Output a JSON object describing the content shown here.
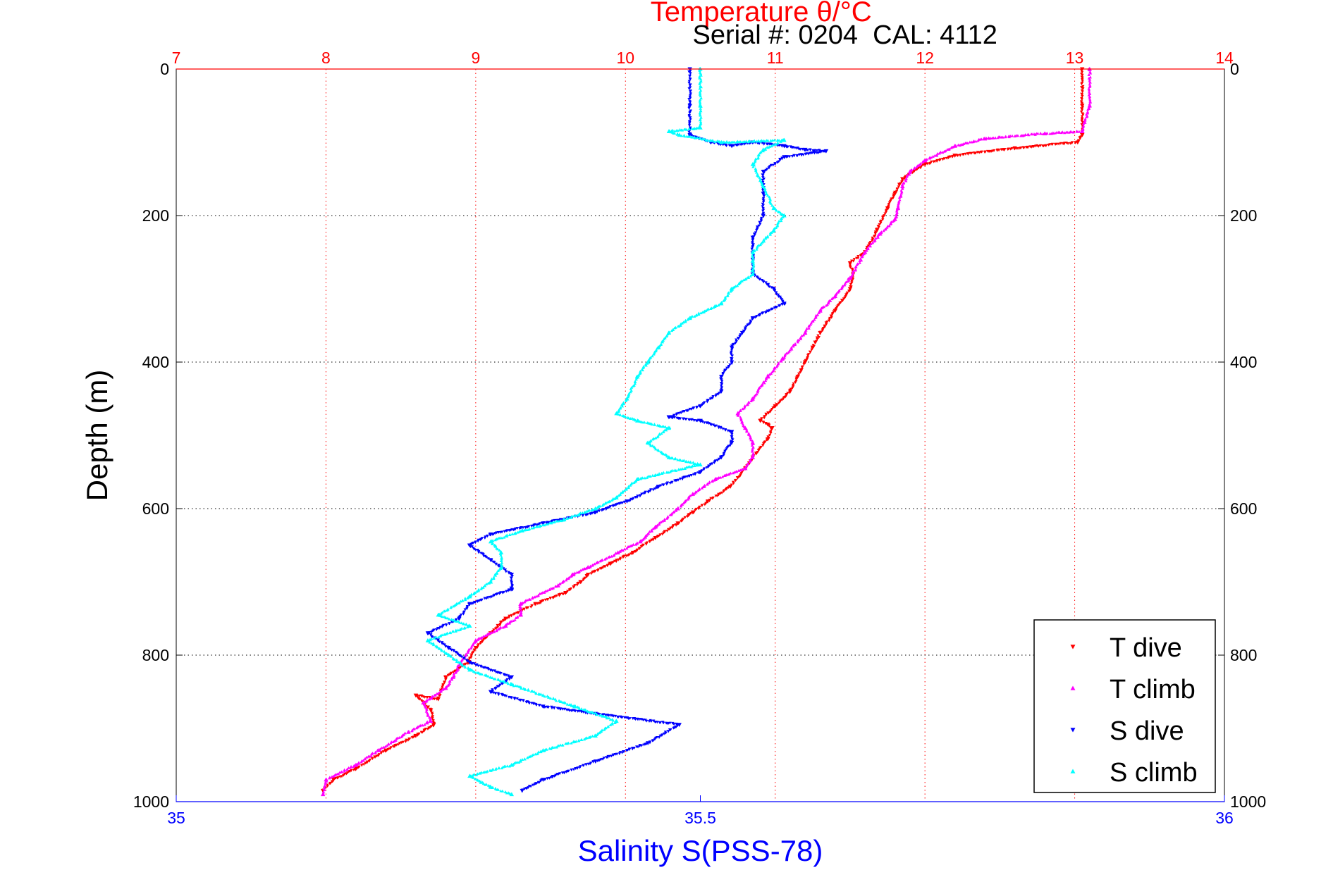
{
  "chart_data": {
    "type": "scatter",
    "title": "Temperature θ/°C",
    "subtitle": "Serial #: 0204  CAL: 4112",
    "xlabel": "Salinity S(PSS-78)",
    "ylabel": "Depth (m)",
    "x_bottom": {
      "label": "Salinity S(PSS-78)",
      "lim": [
        35,
        36
      ],
      "ticks": [
        "35",
        "35.5",
        "36"
      ],
      "color": "#0000ff"
    },
    "x_top": {
      "label": "Temperature θ/°C",
      "lim": [
        7,
        14
      ],
      "ticks": [
        "7",
        "8",
        "9",
        "10",
        "11",
        "12",
        "13",
        "14"
      ],
      "color": "#ff0000"
    },
    "y": {
      "label": "Depth (m)",
      "lim": [
        0,
        1000
      ],
      "reversed": true,
      "ticks": [
        "0",
        "200",
        "400",
        "600",
        "800",
        "1000"
      ]
    },
    "grid": true,
    "legend_position": "bottom-right",
    "legend": [
      "T dive",
      "T climb",
      "S dive",
      "S climb"
    ],
    "series": [
      {
        "name": "T dive",
        "axis": "temperature",
        "color": "#ff0000",
        "marker": "triangle-down",
        "points": [
          [
            13.05,
            0
          ],
          [
            13.05,
            50
          ],
          [
            13.05,
            90
          ],
          [
            13.02,
            100
          ],
          [
            12.6,
            108
          ],
          [
            12.2,
            118
          ],
          [
            12.0,
            130
          ],
          [
            11.85,
            150
          ],
          [
            11.8,
            170
          ],
          [
            11.75,
            190
          ],
          [
            11.68,
            220
          ],
          [
            11.6,
            250
          ],
          [
            11.5,
            265
          ],
          [
            11.52,
            280
          ],
          [
            11.5,
            300
          ],
          [
            11.4,
            330
          ],
          [
            11.3,
            360
          ],
          [
            11.25,
            380
          ],
          [
            11.2,
            400
          ],
          [
            11.15,
            420
          ],
          [
            11.1,
            440
          ],
          [
            11.0,
            460
          ],
          [
            10.9,
            480
          ],
          [
            10.95,
            485
          ],
          [
            10.98,
            490
          ],
          [
            10.95,
            505
          ],
          [
            10.85,
            530
          ],
          [
            10.8,
            545
          ],
          [
            10.7,
            570
          ],
          [
            10.55,
            590
          ],
          [
            10.45,
            605
          ],
          [
            10.35,
            620
          ],
          [
            10.2,
            640
          ],
          [
            10.05,
            660
          ],
          [
            9.9,
            675
          ],
          [
            9.75,
            690
          ],
          [
            9.7,
            700
          ],
          [
            9.6,
            715
          ],
          [
            9.4,
            730
          ],
          [
            9.2,
            750
          ],
          [
            9.1,
            770
          ],
          [
            9.0,
            790
          ],
          [
            8.95,
            810
          ],
          [
            8.8,
            830
          ],
          [
            8.75,
            860
          ],
          [
            8.6,
            855
          ],
          [
            8.7,
            875
          ],
          [
            8.72,
            895
          ],
          [
            8.6,
            910
          ],
          [
            8.4,
            930
          ],
          [
            8.2,
            955
          ],
          [
            8.05,
            970
          ],
          [
            7.98,
            985
          ]
        ]
      },
      {
        "name": "T climb",
        "axis": "temperature",
        "color": "#ff00ff",
        "marker": "triangle-up",
        "points": [
          [
            13.1,
            0
          ],
          [
            13.1,
            50
          ],
          [
            13.05,
            85
          ],
          [
            12.8,
            88
          ],
          [
            12.4,
            95
          ],
          [
            12.2,
            105
          ],
          [
            12.0,
            125
          ],
          [
            11.9,
            140
          ],
          [
            11.85,
            160
          ],
          [
            11.82,
            190
          ],
          [
            11.8,
            205
          ],
          [
            11.7,
            225
          ],
          [
            11.6,
            250
          ],
          [
            11.5,
            285
          ],
          [
            11.4,
            310
          ],
          [
            11.3,
            330
          ],
          [
            11.2,
            360
          ],
          [
            11.05,
            395
          ],
          [
            10.95,
            420
          ],
          [
            10.85,
            450
          ],
          [
            10.75,
            470
          ],
          [
            10.8,
            490
          ],
          [
            10.85,
            510
          ],
          [
            10.85,
            530
          ],
          [
            10.8,
            545
          ],
          [
            10.6,
            560
          ],
          [
            10.45,
            580
          ],
          [
            10.35,
            600
          ],
          [
            10.2,
            625
          ],
          [
            10.1,
            645
          ],
          [
            9.95,
            660
          ],
          [
            9.75,
            680
          ],
          [
            9.65,
            690
          ],
          [
            9.55,
            705
          ],
          [
            9.3,
            730
          ],
          [
            9.3,
            745
          ],
          [
            9.2,
            760
          ],
          [
            9.0,
            780
          ],
          [
            8.9,
            810
          ],
          [
            8.85,
            830
          ],
          [
            8.8,
            845
          ],
          [
            8.65,
            865
          ],
          [
            8.7,
            890
          ],
          [
            8.55,
            905
          ],
          [
            8.35,
            930
          ],
          [
            8.2,
            950
          ],
          [
            8.0,
            970
          ],
          [
            7.98,
            990
          ]
        ]
      },
      {
        "name": "S dive",
        "axis": "salinity",
        "color": "#0000ff",
        "marker": "triangle-down",
        "points": [
          [
            35.49,
            0
          ],
          [
            35.49,
            50
          ],
          [
            35.49,
            90
          ],
          [
            35.51,
            100
          ],
          [
            35.53,
            105
          ],
          [
            35.55,
            100
          ],
          [
            35.58,
            105
          ],
          [
            35.6,
            110
          ],
          [
            35.62,
            112
          ],
          [
            35.58,
            120
          ],
          [
            35.56,
            140
          ],
          [
            35.56,
            170
          ],
          [
            35.56,
            200
          ],
          [
            35.55,
            230
          ],
          [
            35.55,
            260
          ],
          [
            35.55,
            280
          ],
          [
            35.57,
            300
          ],
          [
            35.58,
            320
          ],
          [
            35.55,
            340
          ],
          [
            35.54,
            360
          ],
          [
            35.53,
            380
          ],
          [
            35.53,
            400
          ],
          [
            35.52,
            420
          ],
          [
            35.52,
            440
          ],
          [
            35.5,
            460
          ],
          [
            35.47,
            475
          ],
          [
            35.5,
            480
          ],
          [
            35.53,
            495
          ],
          [
            35.53,
            510
          ],
          [
            35.52,
            530
          ],
          [
            35.5,
            550
          ],
          [
            35.46,
            570
          ],
          [
            35.43,
            590
          ],
          [
            35.4,
            605
          ],
          [
            35.35,
            620
          ],
          [
            35.3,
            635
          ],
          [
            35.28,
            650
          ],
          [
            35.3,
            670
          ],
          [
            35.32,
            690
          ],
          [
            35.32,
            710
          ],
          [
            35.28,
            730
          ],
          [
            35.27,
            750
          ],
          [
            35.24,
            770
          ],
          [
            35.26,
            790
          ],
          [
            35.28,
            810
          ],
          [
            35.32,
            830
          ],
          [
            35.3,
            850
          ],
          [
            35.35,
            870
          ],
          [
            35.4,
            880
          ],
          [
            35.48,
            895
          ],
          [
            35.45,
            920
          ],
          [
            35.4,
            945
          ],
          [
            35.35,
            970
          ],
          [
            35.33,
            985
          ]
        ]
      },
      {
        "name": "S climb",
        "axis": "salinity",
        "color": "#00ffff",
        "marker": "triangle-up",
        "points": [
          [
            35.5,
            0
          ],
          [
            35.5,
            50
          ],
          [
            35.5,
            80
          ],
          [
            35.47,
            85
          ],
          [
            35.48,
            90
          ],
          [
            35.52,
            100
          ],
          [
            35.58,
            97
          ],
          [
            35.56,
            110
          ],
          [
            35.55,
            130
          ],
          [
            35.56,
            160
          ],
          [
            35.57,
            190
          ],
          [
            35.58,
            200
          ],
          [
            35.57,
            220
          ],
          [
            35.55,
            250
          ],
          [
            35.55,
            280
          ],
          [
            35.53,
            300
          ],
          [
            35.52,
            320
          ],
          [
            35.49,
            340
          ],
          [
            35.47,
            360
          ],
          [
            35.46,
            380
          ],
          [
            35.45,
            400
          ],
          [
            35.44,
            420
          ],
          [
            35.43,
            450
          ],
          [
            35.42,
            470
          ],
          [
            35.44,
            480
          ],
          [
            35.47,
            490
          ],
          [
            35.45,
            510
          ],
          [
            35.47,
            530
          ],
          [
            35.5,
            540
          ],
          [
            35.44,
            560
          ],
          [
            35.42,
            585
          ],
          [
            35.4,
            600
          ],
          [
            35.37,
            615
          ],
          [
            35.33,
            630
          ],
          [
            35.3,
            645
          ],
          [
            35.31,
            660
          ],
          [
            35.31,
            680
          ],
          [
            35.3,
            700
          ],
          [
            35.28,
            720
          ],
          [
            35.25,
            745
          ],
          [
            35.28,
            760
          ],
          [
            35.24,
            780
          ],
          [
            35.26,
            800
          ],
          [
            35.28,
            820
          ],
          [
            35.32,
            840
          ],
          [
            35.38,
            870
          ],
          [
            35.42,
            890
          ],
          [
            35.4,
            910
          ],
          [
            35.35,
            930
          ],
          [
            35.32,
            950
          ],
          [
            35.28,
            965
          ],
          [
            35.3,
            980
          ],
          [
            35.32,
            990
          ]
        ]
      }
    ]
  }
}
